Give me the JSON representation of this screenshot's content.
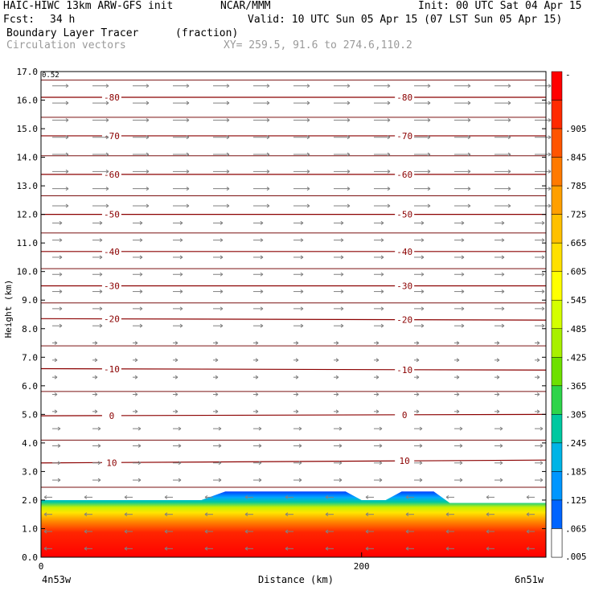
{
  "header": {
    "model": "HAIC-HIWC 13km ARW-GFS init",
    "org": "NCAR/MMM",
    "init": "Init: 00 UTC Sat 04 Apr 15",
    "fcst_label": "Fcst:",
    "fcst_value": "34 h",
    "valid": "Valid: 10 UTC Sun 05 Apr 15 (07 LST Sun 05 Apr 15)",
    "field1": "Boundary Layer Tracer",
    "field1_units": "(fraction)",
    "field2": "Circulation vectors",
    "xy": "XY= 259.5, 91.6 to 274.6,110.2"
  },
  "axes": {
    "ylabel": "Height (km)",
    "xlabel": "Distance (km)",
    "left_point": "4n53w",
    "right_point": "6n51w",
    "vector_ref_label": "0.52"
  },
  "chart_data": {
    "type": "heatmap",
    "xlim": [
      0,
      315
    ],
    "ylim": [
      0,
      17
    ],
    "xticks": [
      "0",
      "200"
    ],
    "xtick_values": [
      0,
      200
    ],
    "yticks": [
      "0.0",
      "1.0",
      "2.0",
      "3.0",
      "4.0",
      "5.0",
      "6.0",
      "7.0",
      "8.0",
      "9.0",
      "10.0",
      "11.0",
      "12.0",
      "13.0",
      "14.0",
      "15.0",
      "16.0",
      "17.0"
    ],
    "colorbar_labels": [
      "-",
      ".905",
      ".845",
      ".785",
      ".725",
      ".665",
      ".605",
      ".545",
      ".485",
      ".425",
      ".365",
      ".305",
      ".245",
      ".185",
      ".125",
      ".065",
      ".005"
    ],
    "colors": [
      "#ff0000",
      "#ff2a00",
      "#ff5500",
      "#ff7a00",
      "#ff9f00",
      "#ffc000",
      "#ffe000",
      "#ffff00",
      "#d4ff00",
      "#a8f000",
      "#6ee000",
      "#2ed44a",
      "#00c8a0",
      "#00b4e6",
      "#0096ff",
      "#0064ff",
      "#0032e6"
    ],
    "tracer_top_km": [
      {
        "x": 0,
        "top": 2.0
      },
      {
        "x": 75,
        "top": 2.0
      },
      {
        "x": 100,
        "top": 2.0
      },
      {
        "x": 115,
        "top": 2.3
      },
      {
        "x": 155,
        "top": 2.3
      },
      {
        "x": 190,
        "top": 2.3
      },
      {
        "x": 200,
        "top": 2.0
      },
      {
        "x": 215,
        "top": 2.0
      },
      {
        "x": 225,
        "top": 2.3
      },
      {
        "x": 245,
        "top": 2.3
      },
      {
        "x": 255,
        "top": 1.9
      },
      {
        "x": 315,
        "top": 1.9
      }
    ],
    "isotherms": [
      {
        "label": "-80",
        "left_km": 16.1,
        "right_km": 16.1
      },
      {
        "label": "-70",
        "left_km": 14.75,
        "right_km": 14.75
      },
      {
        "label": "-60",
        "left_km": 13.4,
        "right_km": 13.4
      },
      {
        "label": "-50",
        "left_km": 12.0,
        "right_km": 12.0
      },
      {
        "label": "-40",
        "left_km": 10.7,
        "right_km": 10.7
      },
      {
        "label": "-30",
        "left_km": 9.5,
        "right_km": 9.5
      },
      {
        "label": "-20",
        "left_km": 8.35,
        "right_km": 8.3
      },
      {
        "label": "-10",
        "left_km": 6.6,
        "right_km": 6.55
      },
      {
        "label": "0",
        "left_km": 4.95,
        "right_km": 5.0
      },
      {
        "label": "10",
        "left_km": 3.3,
        "right_km": 3.4
      }
    ],
    "extra_lines_km": [
      16.7,
      15.4,
      14.05,
      12.65,
      11.35,
      10.1,
      8.9,
      7.4,
      5.8,
      4.1,
      2.45
    ]
  }
}
